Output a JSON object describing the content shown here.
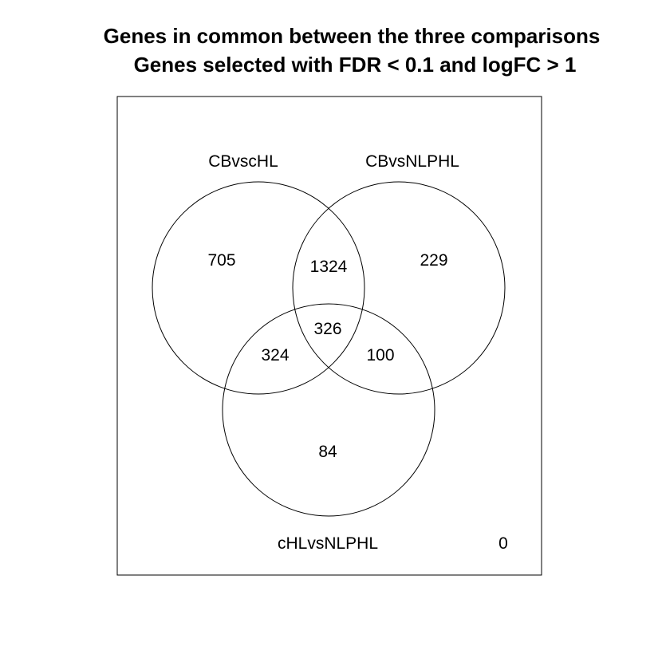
{
  "title": {
    "line1": "Genes in common between the three comparisons",
    "line2": "Genes selected with FDR < 0.1 and logFC > 1"
  },
  "sets": {
    "a": "CBvscHL",
    "b": "CBvsNLPHL",
    "c": "cHLvsNLPHL"
  },
  "counts": {
    "a_only": "705",
    "ab_only": "1324",
    "b_only": "229",
    "abc": "326",
    "ac_only": "324",
    "bc_only": "100",
    "c_only": "84",
    "none": "0"
  },
  "colors": {
    "line": "#000000",
    "background": "#ffffff"
  }
}
